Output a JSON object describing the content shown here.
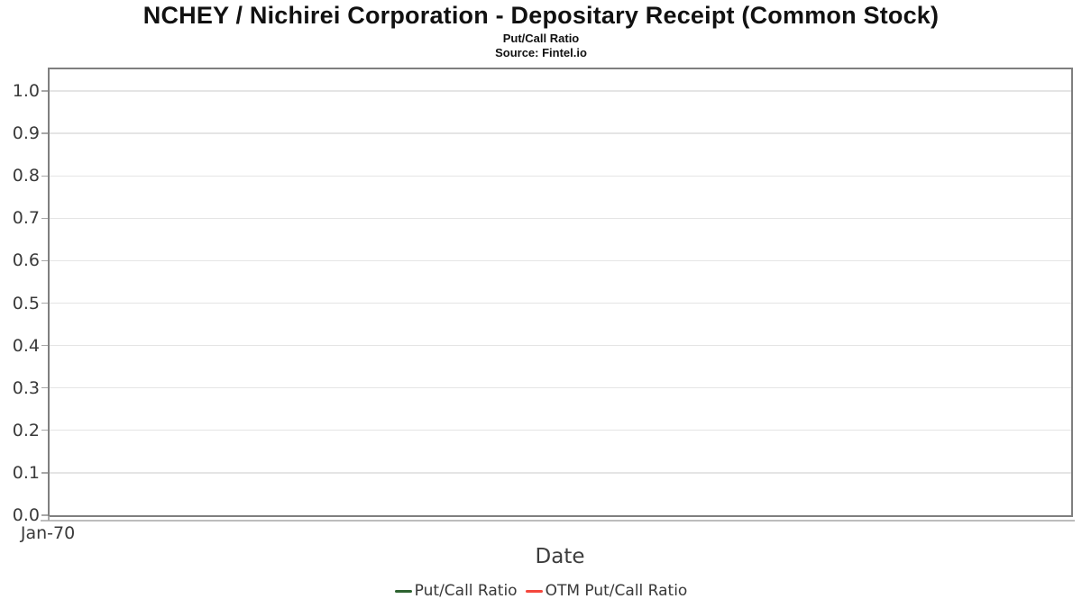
{
  "header": {
    "title": "NCHEY / Nichirei Corporation - Depositary Receipt (Common Stock)",
    "subtitle": "Put/Call Ratio",
    "source": "Source: Fintel.io"
  },
  "chart_data": {
    "type": "line",
    "title": "NCHEY / Nichirei Corporation - Depositary Receipt (Common Stock)",
    "subtitle": "Put/Call Ratio",
    "source_note": "Source: Fintel.io",
    "xlabel": "Date",
    "ylabel": "",
    "x_tick_labels": [
      "Jan-70"
    ],
    "ylim": [
      0.0,
      1.05
    ],
    "yticks": [
      "0.0",
      "0.1",
      "0.2",
      "0.3",
      "0.4",
      "0.5",
      "0.6",
      "0.7",
      "0.8",
      "0.9",
      "1.0"
    ],
    "grid": "horizontal-only",
    "legend_position": "bottom-center",
    "series": [
      {
        "name": "Put/Call Ratio",
        "color": "#2d6330",
        "x": [],
        "values": []
      },
      {
        "name": "OTM Put/Call Ratio",
        "color": "#f4473d",
        "x": [],
        "values": []
      }
    ]
  },
  "colors": {
    "plot_border": "#7f7f7f",
    "gridline": "#e5e5e5",
    "axis_line": "#bdbdbd",
    "tick": "#a8a8a8",
    "tick_label": "#3a3a3a",
    "axis_title": "#3d3d3d",
    "legend_text": "#383838",
    "title_text": "#111111"
  }
}
